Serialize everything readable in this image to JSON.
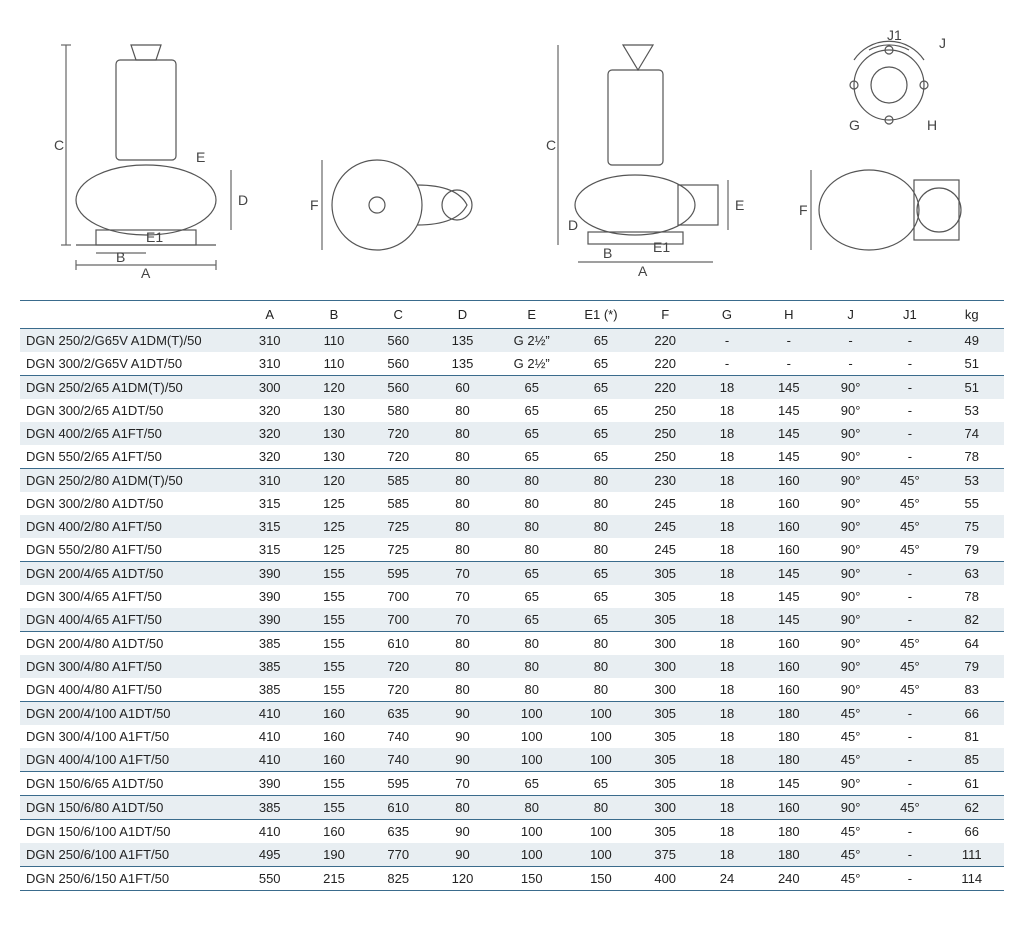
{
  "diagrams": {
    "dim_labels": [
      "A",
      "B",
      "C",
      "D",
      "E",
      "E1",
      "F",
      "G",
      "H",
      "J",
      "J1"
    ]
  },
  "table": {
    "columns": [
      "",
      "A",
      "B",
      "C",
      "D",
      "E",
      "E1 (*)",
      "F",
      "G",
      "H",
      "J",
      "J1",
      "kg"
    ],
    "col_widths_pct": [
      22,
      6.5,
      6.5,
      6.5,
      6.5,
      7.5,
      6.5,
      6.5,
      6,
      6.5,
      6,
      6,
      6.5
    ],
    "header_border_color": "#3a6b8c",
    "shade_color": "#e8eef2",
    "text_color": "#222222",
    "font_size_pt": 10,
    "groups": [
      {
        "rows": [
          {
            "model": "DGN 250/2/G65V A1DM(T)/50",
            "A": "310",
            "B": "110",
            "C": "560",
            "D": "135",
            "E": "G 2½”",
            "E1": "65",
            "F": "220",
            "G": "-",
            "H": "-",
            "J": "-",
            "J1": "-",
            "kg": "49"
          },
          {
            "model": "DGN 300/2/G65V A1DT/50",
            "A": "310",
            "B": "110",
            "C": "560",
            "D": "135",
            "E": "G 2½”",
            "E1": "65",
            "F": "220",
            "G": "-",
            "H": "-",
            "J": "-",
            "J1": "-",
            "kg": "51"
          }
        ]
      },
      {
        "rows": [
          {
            "model": "DGN 250/2/65 A1DM(T)/50",
            "A": "300",
            "B": "120",
            "C": "560",
            "D": "60",
            "E": "65",
            "E1": "65",
            "F": "220",
            "G": "18",
            "H": "145",
            "J": "90°",
            "J1": "-",
            "kg": "51"
          },
          {
            "model": "DGN 300/2/65 A1DT/50",
            "A": "320",
            "B": "130",
            "C": "580",
            "D": "80",
            "E": "65",
            "E1": "65",
            "F": "250",
            "G": "18",
            "H": "145",
            "J": "90°",
            "J1": "-",
            "kg": "53"
          },
          {
            "model": "DGN 400/2/65 A1FT/50",
            "A": "320",
            "B": "130",
            "C": "720",
            "D": "80",
            "E": "65",
            "E1": "65",
            "F": "250",
            "G": "18",
            "H": "145",
            "J": "90°",
            "J1": "-",
            "kg": "74"
          },
          {
            "model": "DGN 550/2/65 A1FT/50",
            "A": "320",
            "B": "130",
            "C": "720",
            "D": "80",
            "E": "65",
            "E1": "65",
            "F": "250",
            "G": "18",
            "H": "145",
            "J": "90°",
            "J1": "-",
            "kg": "78"
          }
        ]
      },
      {
        "rows": [
          {
            "model": "DGN 250/2/80 A1DM(T)/50",
            "A": "310",
            "B": "120",
            "C": "585",
            "D": "80",
            "E": "80",
            "E1": "80",
            "F": "230",
            "G": "18",
            "H": "160",
            "J": "90°",
            "J1": "45°",
            "kg": "53"
          },
          {
            "model": "DGN 300/2/80 A1DT/50",
            "A": "315",
            "B": "125",
            "C": "585",
            "D": "80",
            "E": "80",
            "E1": "80",
            "F": "245",
            "G": "18",
            "H": "160",
            "J": "90°",
            "J1": "45°",
            "kg": "55"
          },
          {
            "model": "DGN 400/2/80 A1FT/50",
            "A": "315",
            "B": "125",
            "C": "725",
            "D": "80",
            "E": "80",
            "E1": "80",
            "F": "245",
            "G": "18",
            "H": "160",
            "J": "90°",
            "J1": "45°",
            "kg": "75"
          },
          {
            "model": "DGN 550/2/80 A1FT/50",
            "A": "315",
            "B": "125",
            "C": "725",
            "D": "80",
            "E": "80",
            "E1": "80",
            "F": "245",
            "G": "18",
            "H": "160",
            "J": "90°",
            "J1": "45°",
            "kg": "79"
          }
        ]
      },
      {
        "rows": [
          {
            "model": "DGN 200/4/65 A1DT/50",
            "A": "390",
            "B": "155",
            "C": "595",
            "D": "70",
            "E": "65",
            "E1": "65",
            "F": "305",
            "G": "18",
            "H": "145",
            "J": "90°",
            "J1": "-",
            "kg": "63"
          },
          {
            "model": "DGN 300/4/65 A1FT/50",
            "A": "390",
            "B": "155",
            "C": "700",
            "D": "70",
            "E": "65",
            "E1": "65",
            "F": "305",
            "G": "18",
            "H": "145",
            "J": "90°",
            "J1": "-",
            "kg": "78"
          },
          {
            "model": "DGN 400/4/65 A1FT/50",
            "A": "390",
            "B": "155",
            "C": "700",
            "D": "70",
            "E": "65",
            "E1": "65",
            "F": "305",
            "G": "18",
            "H": "145",
            "J": "90°",
            "J1": "-",
            "kg": "82"
          }
        ]
      },
      {
        "rows": [
          {
            "model": "DGN 200/4/80 A1DT/50",
            "A": "385",
            "B": "155",
            "C": "610",
            "D": "80",
            "E": "80",
            "E1": "80",
            "F": "300",
            "G": "18",
            "H": "160",
            "J": "90°",
            "J1": "45°",
            "kg": "64"
          },
          {
            "model": "DGN 300/4/80 A1FT/50",
            "A": "385",
            "B": "155",
            "C": "720",
            "D": "80",
            "E": "80",
            "E1": "80",
            "F": "300",
            "G": "18",
            "H": "160",
            "J": "90°",
            "J1": "45°",
            "kg": "79"
          },
          {
            "model": "DGN 400/4/80 A1FT/50",
            "A": "385",
            "B": "155",
            "C": "720",
            "D": "80",
            "E": "80",
            "E1": "80",
            "F": "300",
            "G": "18",
            "H": "160",
            "J": "90°",
            "J1": "45°",
            "kg": "83"
          }
        ]
      },
      {
        "rows": [
          {
            "model": "DGN 200/4/100 A1DT/50",
            "A": "410",
            "B": "160",
            "C": "635",
            "D": "90",
            "E": "100",
            "E1": "100",
            "F": "305",
            "G": "18",
            "H": "180",
            "J": "45°",
            "J1": "-",
            "kg": "66"
          },
          {
            "model": "DGN 300/4/100 A1FT/50",
            "A": "410",
            "B": "160",
            "C": "740",
            "D": "90",
            "E": "100",
            "E1": "100",
            "F": "305",
            "G": "18",
            "H": "180",
            "J": "45°",
            "J1": "-",
            "kg": "81"
          },
          {
            "model": "DGN 400/4/100 A1FT/50",
            "A": "410",
            "B": "160",
            "C": "740",
            "D": "90",
            "E": "100",
            "E1": "100",
            "F": "305",
            "G": "18",
            "H": "180",
            "J": "45°",
            "J1": "-",
            "kg": "85"
          }
        ]
      },
      {
        "rows": [
          {
            "model": "DGN 150/6/65 A1DT/50",
            "A": "390",
            "B": "155",
            "C": "595",
            "D": "70",
            "E": "65",
            "E1": "65",
            "F": "305",
            "G": "18",
            "H": "145",
            "J": "90°",
            "J1": "-",
            "kg": "61"
          }
        ]
      },
      {
        "rows": [
          {
            "model": "DGN 150/6/80 A1DT/50",
            "A": "385",
            "B": "155",
            "C": "610",
            "D": "80",
            "E": "80",
            "E1": "80",
            "F": "300",
            "G": "18",
            "H": "160",
            "J": "90°",
            "J1": "45°",
            "kg": "62"
          }
        ]
      },
      {
        "rows": [
          {
            "model": "DGN 150/6/100 A1DT/50",
            "A": "410",
            "B": "160",
            "C": "635",
            "D": "90",
            "E": "100",
            "E1": "100",
            "F": "305",
            "G": "18",
            "H": "180",
            "J": "45°",
            "J1": "-",
            "kg": "66"
          },
          {
            "model": "DGN 250/6/100 A1FT/50",
            "A": "495",
            "B": "190",
            "C": "770",
            "D": "90",
            "E": "100",
            "E1": "100",
            "F": "375",
            "G": "18",
            "H": "180",
            "J": "45°",
            "J1": "-",
            "kg": "111"
          }
        ]
      },
      {
        "rows": [
          {
            "model": "DGN 250/6/150 A1FT/50",
            "A": "550",
            "B": "215",
            "C": "825",
            "D": "120",
            "E": "150",
            "E1": "150",
            "F": "400",
            "G": "24",
            "H": "240",
            "J": "45°",
            "J1": "-",
            "kg": "114"
          }
        ]
      }
    ]
  }
}
